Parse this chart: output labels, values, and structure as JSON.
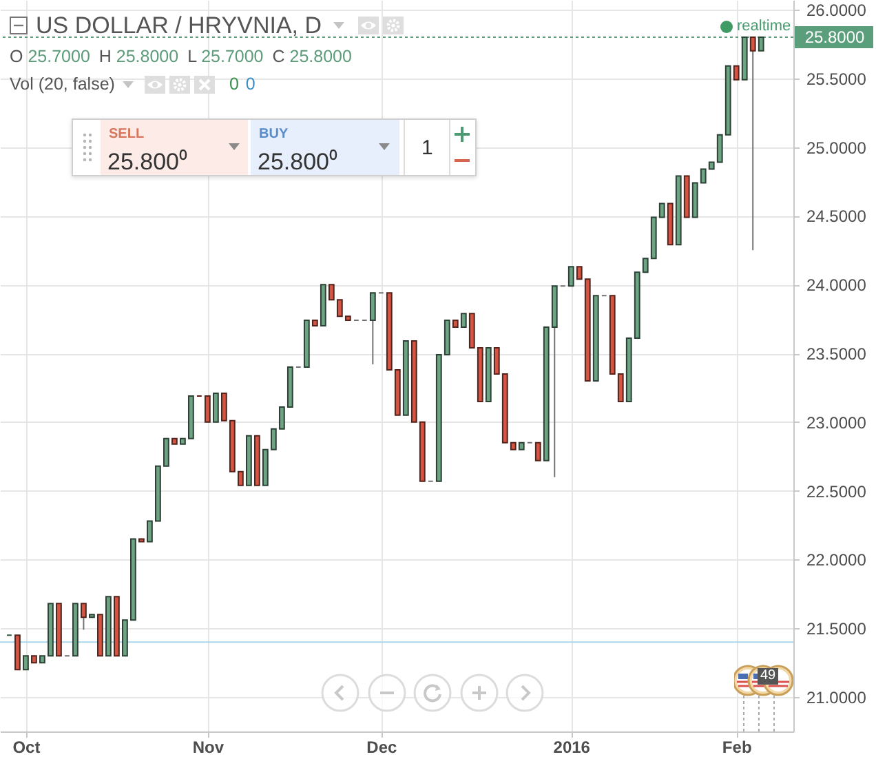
{
  "chart_data": {
    "type": "candlestick",
    "title": "US DOLLAR / HRYVNIA, D",
    "subtitle": "O 25.7000 H 25.8000 L 25.7000 C 25.8000",
    "annotations": [
      "Vol (20, false)",
      "0",
      "0",
      "realtime",
      "SELL",
      "25.800⁰",
      "BUY",
      "25.800⁰",
      "1",
      "49"
    ],
    "categories": [
      null,
      null,
      "Oct",
      null,
      null,
      null,
      null,
      null,
      null,
      null,
      null,
      null,
      null,
      null,
      null,
      null,
      null,
      null,
      null,
      null,
      null,
      null,
      null,
      null,
      "Nov",
      null,
      null,
      null,
      null,
      null,
      null,
      null,
      null,
      null,
      null,
      null,
      null,
      null,
      null,
      null,
      null,
      null,
      null,
      null,
      null,
      "Dec",
      null,
      null,
      null,
      null,
      null,
      null,
      null,
      null,
      null,
      null,
      null,
      null,
      null,
      null,
      null,
      null,
      null,
      null,
      null,
      null,
      null,
      null,
      "2016",
      null,
      null,
      null,
      null,
      null,
      null,
      null,
      null,
      null,
      null,
      null,
      null,
      null,
      null,
      null,
      null,
      null,
      null,
      null,
      "Feb",
      null,
      null,
      null
    ],
    "ohlc": [
      [
        21.45,
        21.45,
        21.45,
        21.45
      ],
      [
        21.45,
        21.45,
        21.2,
        21.2
      ],
      [
        21.2,
        21.3,
        21.2,
        21.3
      ],
      [
        21.3,
        21.3,
        21.25,
        21.25
      ],
      [
        21.25,
        21.3,
        21.25,
        21.3
      ],
      [
        21.3,
        21.68,
        21.3,
        21.68
      ],
      [
        21.68,
        21.68,
        21.3,
        21.3
      ],
      [
        21.3,
        21.3,
        21.3,
        21.3
      ],
      [
        21.3,
        21.68,
        21.3,
        21.68
      ],
      [
        21.68,
        21.68,
        21.49,
        21.58
      ],
      [
        21.58,
        21.6,
        21.58,
        21.6
      ],
      [
        21.6,
        21.6,
        21.3,
        21.3
      ],
      [
        21.3,
        21.73,
        21.3,
        21.73
      ],
      [
        21.73,
        21.73,
        21.3,
        21.3
      ],
      [
        21.3,
        21.56,
        21.3,
        21.56
      ],
      [
        21.56,
        22.15,
        21.56,
        22.15
      ],
      [
        22.15,
        22.15,
        22.13,
        22.13
      ],
      [
        22.13,
        22.28,
        22.13,
        22.28
      ],
      [
        22.28,
        22.68,
        22.28,
        22.68
      ],
      [
        22.68,
        22.88,
        22.68,
        22.88
      ],
      [
        22.88,
        22.88,
        22.84,
        22.84
      ],
      [
        22.84,
        22.88,
        22.84,
        22.88
      ],
      [
        22.88,
        23.19,
        22.88,
        23.19
      ],
      [
        23.19,
        23.19,
        23.19,
        23.19
      ],
      [
        23.19,
        23.19,
        23.0,
        23.0
      ],
      [
        23.0,
        23.21,
        23.0,
        23.21
      ],
      [
        23.21,
        23.21,
        23.01,
        23.01
      ],
      [
        23.01,
        23.01,
        22.64,
        22.64
      ],
      [
        22.64,
        22.64,
        22.54,
        22.54
      ],
      [
        22.54,
        22.9,
        22.54,
        22.9
      ],
      [
        22.9,
        22.9,
        22.54,
        22.54
      ],
      [
        22.54,
        22.8,
        22.54,
        22.8
      ],
      [
        22.8,
        22.95,
        22.8,
        22.95
      ],
      [
        22.95,
        23.11,
        22.95,
        23.11
      ],
      [
        23.11,
        23.4,
        23.11,
        23.4
      ],
      [
        23.4,
        23.4,
        23.4,
        23.4
      ],
      [
        23.4,
        23.74,
        23.4,
        23.74
      ],
      [
        23.74,
        23.74,
        23.7,
        23.7
      ],
      [
        23.7,
        24.0,
        23.7,
        24.0
      ],
      [
        24.0,
        24.0,
        23.89,
        23.89
      ],
      [
        23.89,
        23.89,
        23.77,
        23.77
      ],
      [
        23.77,
        23.77,
        23.74,
        23.74
      ],
      [
        23.74,
        23.74,
        23.74,
        23.74
      ],
      [
        23.74,
        23.74,
        23.74,
        23.74
      ],
      [
        23.74,
        23.94,
        23.42,
        23.94
      ],
      [
        23.94,
        23.94,
        23.94,
        23.94
      ],
      [
        23.94,
        23.94,
        23.38,
        23.38
      ],
      [
        23.38,
        23.38,
        23.05,
        23.05
      ],
      [
        23.05,
        23.59,
        23.05,
        23.59
      ],
      [
        23.59,
        23.59,
        23.0,
        23.0
      ],
      [
        23.0,
        23.0,
        22.57,
        22.57
      ],
      [
        22.57,
        22.57,
        22.57,
        22.57
      ],
      [
        22.57,
        23.49,
        22.57,
        23.49
      ],
      [
        23.49,
        23.74,
        23.49,
        23.74
      ],
      [
        23.74,
        23.74,
        23.69,
        23.69
      ],
      [
        23.69,
        23.79,
        23.69,
        23.79
      ],
      [
        23.79,
        23.79,
        23.54,
        23.54
      ],
      [
        23.54,
        23.54,
        23.15,
        23.15
      ],
      [
        23.15,
        23.54,
        23.15,
        23.54
      ],
      [
        23.54,
        23.54,
        23.35,
        23.35
      ],
      [
        23.35,
        23.35,
        22.85,
        22.85
      ],
      [
        22.85,
        22.85,
        22.8,
        22.8
      ],
      [
        22.8,
        22.85,
        22.8,
        22.85
      ],
      [
        22.85,
        22.85,
        22.85,
        22.85
      ],
      [
        22.85,
        22.85,
        22.72,
        22.72
      ],
      [
        22.72,
        23.69,
        22.72,
        23.69
      ],
      [
        23.69,
        23.99,
        22.6,
        23.99
      ],
      [
        23.99,
        23.99,
        23.99,
        23.99
      ],
      [
        23.99,
        24.13,
        23.99,
        24.13
      ],
      [
        24.13,
        24.13,
        24.04,
        24.04
      ],
      [
        24.04,
        24.04,
        23.3,
        23.3
      ],
      [
        23.3,
        23.92,
        23.3,
        23.92
      ],
      [
        23.92,
        23.92,
        23.92,
        23.92
      ],
      [
        23.92,
        23.92,
        23.35,
        23.35
      ],
      [
        23.35,
        23.35,
        23.15,
        23.15
      ],
      [
        23.15,
        23.61,
        23.15,
        23.61
      ],
      [
        23.61,
        24.09,
        23.61,
        24.09
      ],
      [
        24.09,
        24.19,
        24.09,
        24.19
      ],
      [
        24.19,
        24.49,
        24.19,
        24.49
      ],
      [
        24.49,
        24.59,
        24.49,
        24.59
      ],
      [
        24.59,
        24.59,
        24.29,
        24.29
      ],
      [
        24.29,
        24.79,
        24.29,
        24.79
      ],
      [
        24.79,
        24.79,
        24.49,
        24.49
      ],
      [
        24.49,
        24.74,
        24.49,
        24.74
      ],
      [
        24.74,
        24.84,
        24.74,
        24.84
      ],
      [
        24.84,
        24.89,
        24.84,
        24.89
      ],
      [
        24.89,
        25.09,
        24.89,
        25.09
      ],
      [
        25.09,
        25.59,
        25.09,
        25.59
      ],
      [
        25.59,
        25.59,
        25.49,
        25.49
      ],
      [
        25.49,
        25.8,
        25.49,
        25.8
      ],
      [
        25.8,
        25.8,
        24.25,
        25.7
      ],
      [
        25.7,
        25.8,
        25.7,
        25.8
      ]
    ],
    "colors": [
      "#2f5a40",
      "#d75442",
      "#6ba583",
      "#d75442",
      "#6ba583",
      "#6ba583",
      "#d75442",
      "#737375",
      "#6ba583",
      "#d75442",
      "#6ba583",
      "#d75442",
      "#6ba583",
      "#d75442",
      "#6ba583",
      "#6ba583",
      "#d75442",
      "#6ba583",
      "#6ba583",
      "#6ba583",
      "#d75442",
      "#6ba583",
      "#6ba583",
      "#5b1a13",
      "#d75442",
      "#6ba583",
      "#d75442",
      "#d75442",
      "#d75442",
      "#6ba583",
      "#d75442",
      "#6ba583",
      "#6ba583",
      "#6ba583",
      "#6ba583",
      "#737375",
      "#6ba583",
      "#d75442",
      "#6ba583",
      "#d75442",
      "#d75442",
      "#d75442",
      "#737375",
      "#737375",
      "#6ba583",
      "#737375",
      "#d75442",
      "#d75442",
      "#6ba583",
      "#d75442",
      "#d75442",
      "#737375",
      "#6ba583",
      "#6ba583",
      "#d75442",
      "#6ba583",
      "#d75442",
      "#d75442",
      "#6ba583",
      "#d75442",
      "#d75442",
      "#d75442",
      "#6ba583",
      "#737375",
      "#d75442",
      "#6ba583",
      "#6ba583",
      "#737375",
      "#6ba583",
      "#d75442",
      "#d75442",
      "#6ba583",
      "#737375",
      "#d75442",
      "#d75442",
      "#6ba583",
      "#6ba583",
      "#6ba583",
      "#6ba583",
      "#6ba583",
      "#d75442",
      "#6ba583",
      "#d75442",
      "#6ba583",
      "#6ba583",
      "#6ba583",
      "#6ba583",
      "#6ba583",
      "#d75442",
      "#6ba583",
      "#d75442",
      "#6ba583"
    ],
    "ylim": [
      20.75,
      26.07
    ],
    "yticks": [
      {
        "value": 21,
        "label": "21.0000"
      },
      {
        "value": 21.5,
        "label": "21.5000"
      },
      {
        "value": 22,
        "label": "22.0000"
      },
      {
        "value": 22.5,
        "label": "22.5000"
      },
      {
        "value": 23,
        "label": "23.0000"
      },
      {
        "value": 23.5,
        "label": "23.5000"
      },
      {
        "value": 24,
        "label": "24.0000"
      },
      {
        "value": 24.5,
        "label": "24.5000"
      },
      {
        "value": 25,
        "label": "25.0000"
      },
      {
        "value": 25.5,
        "label": "25.5000"
      },
      {
        "value": 26,
        "label": "26.0000"
      }
    ],
    "ref_lines": [
      {
        "axis": "y",
        "value": 25.8,
        "label": "25.8000",
        "color": "#5a9e7c",
        "line_style": "dotted"
      },
      {
        "axis": "y",
        "value": 21.4,
        "color": "#a9d6ea"
      }
    ],
    "grid": true
  }
}
